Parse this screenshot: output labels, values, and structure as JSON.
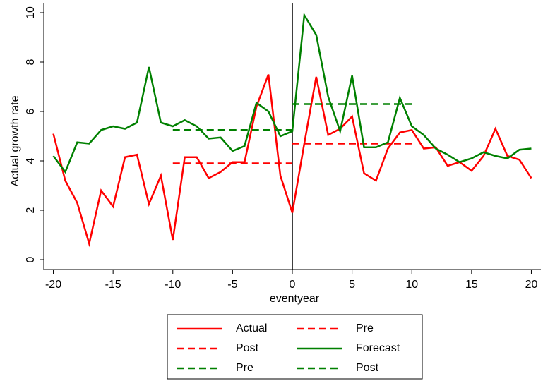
{
  "chart_data": {
    "type": "line",
    "x_label": "eventyear",
    "y_label": "Actual growth rate",
    "x": [
      -20,
      -19,
      -18,
      -17,
      -16,
      -15,
      -14,
      -13,
      -12,
      -11,
      -10,
      -9,
      -8,
      -7,
      -6,
      -5,
      -4,
      -3,
      -2,
      -1,
      0,
      1,
      2,
      3,
      4,
      5,
      6,
      7,
      8,
      9,
      10,
      11,
      12,
      13,
      14,
      15,
      16,
      17,
      18,
      19,
      20
    ],
    "series": [
      {
        "name": "Actual",
        "color": "#ff0000",
        "dash": false,
        "values": [
          5.1,
          3.2,
          2.3,
          0.65,
          2.8,
          2.15,
          4.15,
          4.25,
          2.25,
          3.4,
          0.8,
          4.15,
          4.15,
          3.3,
          3.55,
          3.95,
          3.95,
          6.2,
          7.5,
          3.4,
          1.9,
          4.7,
          7.4,
          5.05,
          5.3,
          5.8,
          3.5,
          3.2,
          4.5,
          5.15,
          5.25,
          4.5,
          4.55,
          3.8,
          3.95,
          3.6,
          4.2,
          5.3,
          4.2,
          4.05,
          3.3
        ]
      },
      {
        "name": "Pre",
        "color": "#ff0000",
        "dash": true,
        "x": [
          -10,
          0
        ],
        "values": [
          3.9,
          3.9
        ]
      },
      {
        "name": "Post",
        "color": "#ff0000",
        "dash": true,
        "x": [
          0,
          10
        ],
        "values": [
          4.7,
          4.7
        ]
      },
      {
        "name": "Forecast",
        "color": "#008000",
        "dash": false,
        "values": [
          4.2,
          3.55,
          4.75,
          4.7,
          5.25,
          5.4,
          5.3,
          5.55,
          7.8,
          5.55,
          5.4,
          5.65,
          5.4,
          4.9,
          4.95,
          4.4,
          4.6,
          6.35,
          6.0,
          5.0,
          5.2,
          9.9,
          9.1,
          6.6,
          5.2,
          7.45,
          4.55,
          4.55,
          4.75,
          6.55,
          5.4,
          5.05,
          4.5,
          4.25,
          3.95,
          4.1,
          4.35,
          4.2,
          4.1,
          4.45,
          4.5
        ]
      },
      {
        "name": "Pre",
        "color": "#008000",
        "dash": true,
        "x": [
          -10,
          0
        ],
        "values": [
          5.25,
          5.25
        ]
      },
      {
        "name": "Post",
        "color": "#008000",
        "dash": true,
        "x": [
          0,
          10
        ],
        "values": [
          6.3,
          6.3
        ]
      }
    ],
    "xlim": [
      -20.8,
      20.8
    ],
    "xticks": [
      -20,
      -15,
      -10,
      -5,
      0,
      5,
      10,
      15,
      20
    ],
    "ylim": [
      -0.4,
      10.4
    ],
    "yticks": [
      0,
      2,
      4,
      6,
      8,
      10
    ],
    "vline": 0,
    "grid": false,
    "legend": "bottom"
  }
}
